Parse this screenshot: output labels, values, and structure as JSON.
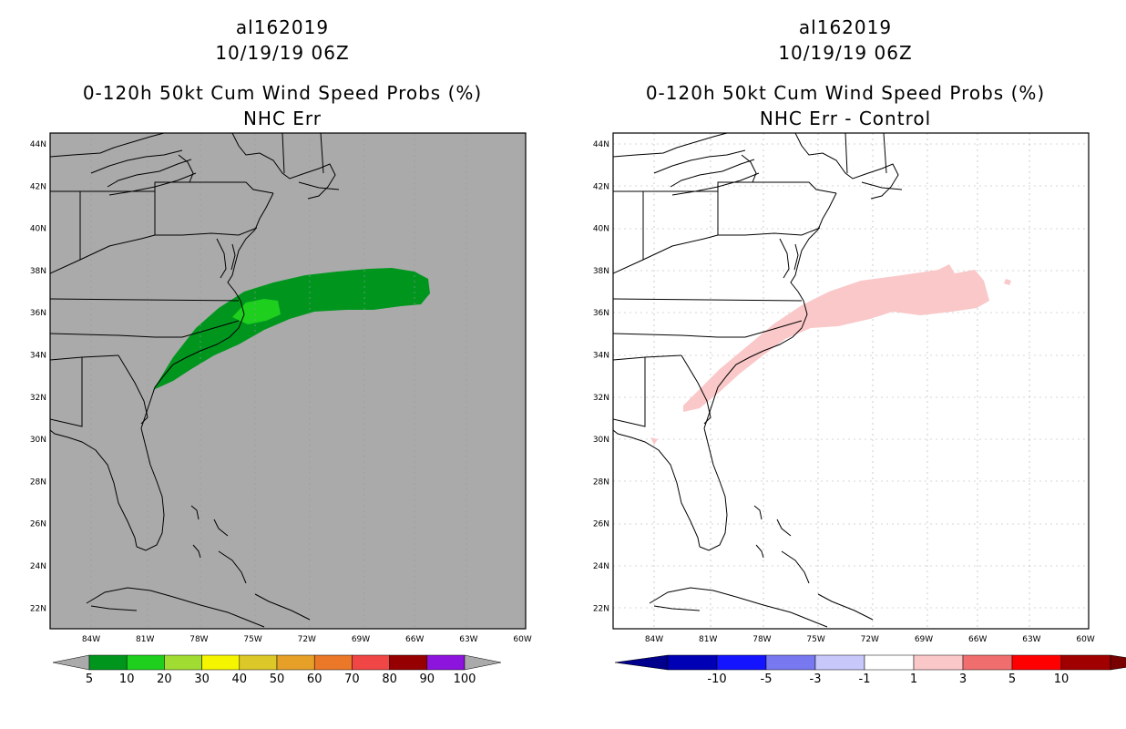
{
  "left_panel": {
    "storm_id": "al162019",
    "datetime": "10/19/19 06Z",
    "product": "0-120h 50kt Cum Wind Speed Probs (%)",
    "subtitle": "NHC Err",
    "lat_labels": [
      "44N",
      "42N",
      "40N",
      "38N",
      "36N",
      "34N",
      "32N",
      "30N",
      "28N",
      "26N",
      "24N",
      "22N"
    ],
    "lon_labels": [
      "84W",
      "81W",
      "78W",
      "75W",
      "72W",
      "69W",
      "66W",
      "63W",
      "60W"
    ],
    "colorbar": {
      "labels": [
        "5",
        "10",
        "20",
        "30",
        "40",
        "50",
        "60",
        "70",
        "80",
        "90",
        "100"
      ],
      "colors": [
        "#00961e",
        "#1ecf1e",
        "#a0dc32",
        "#f5f500",
        "#dcc828",
        "#e6a028",
        "#eb7828",
        "#f04646",
        "#960000",
        "#8c14dc"
      ],
      "end_color": "#aaaaaa"
    },
    "background": "#aaaaaa"
  },
  "right_panel": {
    "storm_id": "al162019",
    "datetime": "10/19/19 06Z",
    "product": "0-120h 50kt Cum Wind Speed Probs (%)",
    "subtitle": "NHC Err - Control",
    "lat_labels": [
      "44N",
      "42N",
      "40N",
      "38N",
      "36N",
      "34N",
      "32N",
      "30N",
      "28N",
      "26N",
      "24N",
      "22N"
    ],
    "lon_labels": [
      "84W",
      "81W",
      "78W",
      "75W",
      "72W",
      "69W",
      "66W",
      "63W",
      "60W"
    ],
    "colorbar": {
      "labels": [
        "-10",
        "-5",
        "-3",
        "-1",
        "1",
        "3",
        "5",
        "10"
      ],
      "colors": [
        "#0000b4",
        "#1414ff",
        "#7878f0",
        "#c8c8fa",
        "#ffffff",
        "#fac8c8",
        "#f06e6e",
        "#ff0000",
        "#a00000"
      ],
      "end_left": "#00008c",
      "end_right": "#780000"
    },
    "background": "#ffffff"
  }
}
